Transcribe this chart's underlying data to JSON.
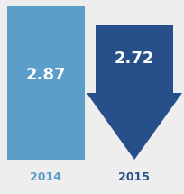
{
  "value_2014": "2.87",
  "value_2015": "2.72",
  "label_2014": "2014",
  "label_2015": "2015",
  "light_blue": "#5b9ec9",
  "dark_blue": "#27508a",
  "background": "#eeeeee",
  "text_color_white": "#ffffff",
  "text_color_light_blue": "#5b9ec9",
  "text_color_dark_blue": "#27508a",
  "figsize": [
    2.04,
    2.15
  ],
  "dpi": 100
}
